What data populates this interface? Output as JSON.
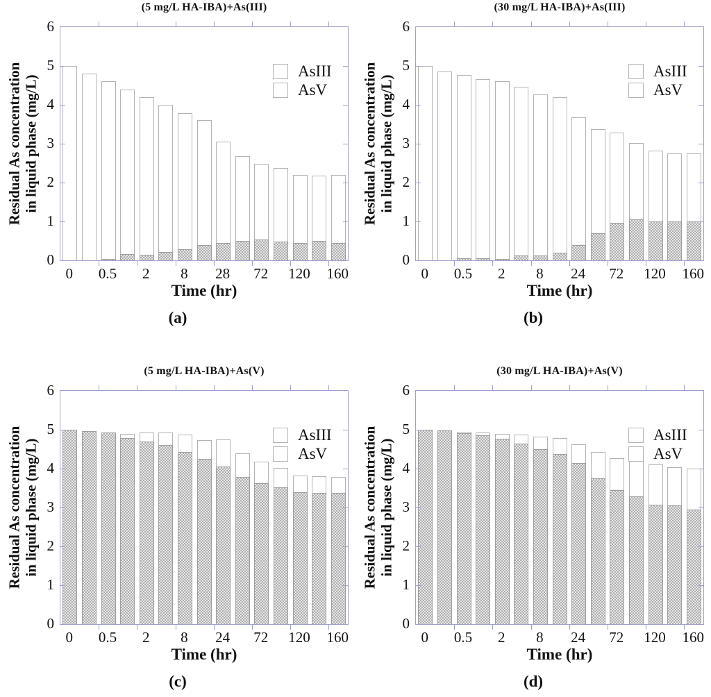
{
  "figure": {
    "colors": {
      "axis_frame": "#9f9fd0",
      "bar_outline": "#b3b3b3",
      "asv_fill_dark": "#aeaeae",
      "asv_fill_light": "#e8e8e8",
      "text": "#111111",
      "background": "#ffffff"
    }
  },
  "chart_data": [
    {
      "id": "a",
      "type": "bar",
      "stacked": true,
      "title": "(5 mg/L HA-IBA)+As(III)",
      "caption": "(a)",
      "xlabel": "Time (hr)",
      "ylabel": "Residual As concentration in liquid phase (mg/L)",
      "ylabel_lines": [
        "Residual As concentration",
        "in liquid phase (mg/L)"
      ],
      "ylim": [
        0,
        6
      ],
      "yticks": [
        0,
        1,
        2,
        3,
        4,
        5,
        6
      ],
      "xtick_labels": [
        "0",
        "0.5",
        "2",
        "8",
        "28",
        "72",
        "120",
        "160"
      ],
      "labeled_bar_indices": [
        0,
        2,
        4,
        6,
        8,
        10,
        12,
        14
      ],
      "grid": false,
      "legend": [
        "AsIII",
        "AsV"
      ],
      "legend_position": "upper right",
      "series": [
        {
          "name": "AsIII",
          "values": [
            5.0,
            4.8,
            4.57,
            4.23,
            4.06,
            3.79,
            3.5,
            3.2,
            2.6,
            2.18,
            1.95,
            1.88,
            1.75,
            1.68,
            1.76
          ]
        },
        {
          "name": "AsV",
          "values": [
            0,
            0,
            0.03,
            0.17,
            0.14,
            0.21,
            0.28,
            0.4,
            0.45,
            0.5,
            0.53,
            0.49,
            0.45,
            0.5,
            0.44
          ]
        }
      ]
    },
    {
      "id": "b",
      "type": "bar",
      "stacked": true,
      "title": "(30 mg/L HA-IBA)+As(III)",
      "caption": "(b)",
      "xlabel": "Time (hr)",
      "ylabel": "Residual As concentration in liquid phase (mg/L)",
      "ylabel_lines": [
        "Residual As concentration",
        "in liquid phase (mg/L)"
      ],
      "ylim": [
        0,
        6
      ],
      "yticks": [
        0,
        1,
        2,
        3,
        4,
        5,
        6
      ],
      "xtick_labels": [
        "0",
        "0.5",
        "2",
        "8",
        "24",
        "72",
        "120",
        "160"
      ],
      "labeled_bar_indices": [
        0,
        2,
        4,
        6,
        8,
        10,
        12,
        14
      ],
      "grid": false,
      "legend": [
        "AsIII",
        "AsV"
      ],
      "legend_position": "upper right",
      "series": [
        {
          "name": "AsIII",
          "values": [
            5.0,
            4.85,
            4.72,
            4.61,
            4.56,
            4.34,
            4.15,
            4.0,
            3.28,
            2.68,
            2.31,
            1.97,
            1.83,
            1.75,
            1.75
          ]
        },
        {
          "name": "AsV",
          "values": [
            0,
            0,
            0.05,
            0.06,
            0.04,
            0.13,
            0.12,
            0.2,
            0.4,
            0.7,
            0.97,
            1.05,
            1.0,
            1.0,
            1.0
          ]
        }
      ]
    },
    {
      "id": "c",
      "type": "bar",
      "stacked": true,
      "title": "(5 mg/L HA-IBA)+As(V)",
      "caption": "(c)",
      "xlabel": "Time (hr)",
      "ylabel": "Residual As concentration in liquid phase (mg/L)",
      "ylabel_lines": [
        "Residual As concentration",
        "in liquid phase (mg/L)"
      ],
      "ylim": [
        0,
        6
      ],
      "yticks": [
        0,
        1,
        2,
        3,
        4,
        5,
        6
      ],
      "xtick_labels": [
        "0",
        "0.5",
        "2",
        "8",
        "24",
        "72",
        "120",
        "160"
      ],
      "labeled_bar_indices": [
        0,
        2,
        4,
        6,
        8,
        10,
        12,
        14
      ],
      "grid": false,
      "legend": [
        "AsIII",
        "AsV"
      ],
      "legend_position": "upper right",
      "series": [
        {
          "name": "AsIII",
          "values": [
            0,
            0,
            0,
            0.12,
            0.23,
            0.33,
            0.44,
            0.48,
            0.7,
            0.62,
            0.56,
            0.5,
            0.42,
            0.42,
            0.41
          ]
        },
        {
          "name": "AsV",
          "values": [
            5.0,
            4.97,
            4.93,
            4.78,
            4.7,
            4.6,
            4.43,
            4.25,
            4.05,
            3.78,
            3.62,
            3.52,
            3.4,
            3.38,
            3.37
          ]
        }
      ]
    },
    {
      "id": "d",
      "type": "bar",
      "stacked": true,
      "title": "(30 mg/L HA-IBA)+As(V)",
      "caption": "(d)",
      "xlabel": "Time (hr)",
      "ylabel": "Residual As concentration in liquid phase (mg/L)",
      "ylabel_lines": [
        "Residual As concentration",
        "in liquid phase (mg/L)"
      ],
      "ylim": [
        0,
        6
      ],
      "yticks": [
        0,
        1,
        2,
        3,
        4,
        5,
        6
      ],
      "xtick_labels": [
        "0",
        "0.5",
        "2",
        "8",
        "24",
        "72",
        "120",
        "160"
      ],
      "labeled_bar_indices": [
        0,
        2,
        4,
        6,
        8,
        10,
        12,
        14
      ],
      "grid": false,
      "legend": [
        "AsIII",
        "AsV"
      ],
      "legend_position": "upper right",
      "series": [
        {
          "name": "AsIII",
          "values": [
            0,
            0,
            0.03,
            0.08,
            0.13,
            0.23,
            0.33,
            0.41,
            0.48,
            0.68,
            0.82,
            0.92,
            1.02,
            0.98,
            1.05
          ]
        },
        {
          "name": "AsV",
          "values": [
            5.0,
            4.98,
            4.92,
            4.85,
            4.77,
            4.65,
            4.5,
            4.37,
            4.15,
            3.75,
            3.45,
            3.28,
            3.08,
            3.05,
            2.95
          ]
        }
      ]
    }
  ]
}
